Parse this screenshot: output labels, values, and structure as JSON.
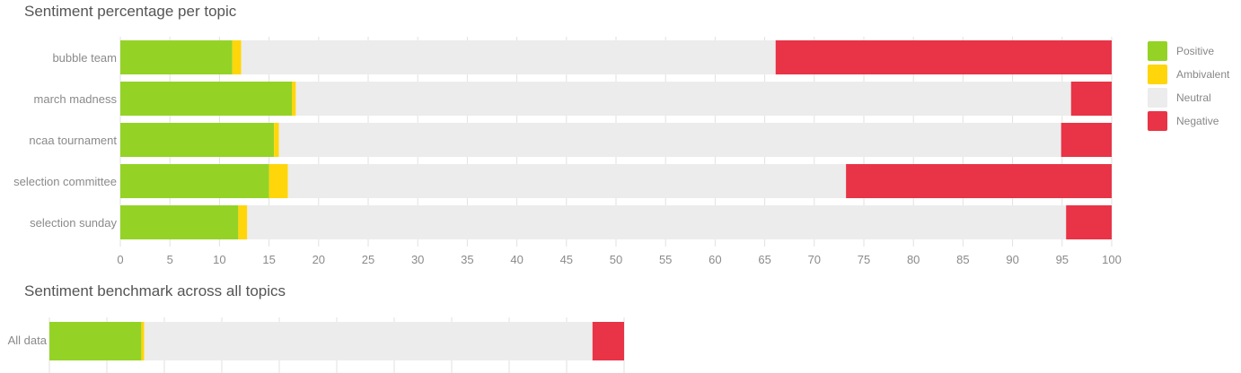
{
  "colors": {
    "positive": "#94d326",
    "ambivalent": "#ffd60a",
    "neutral": "#ececec",
    "negative": "#e83446",
    "grid": "#e2e2e2",
    "axis_text": "#8a8a8a",
    "title_text": "#555555"
  },
  "legend": [
    {
      "key": "positive",
      "label": "Positive"
    },
    {
      "key": "ambivalent",
      "label": "Ambivalent"
    },
    {
      "key": "neutral",
      "label": "Neutral"
    },
    {
      "key": "negative",
      "label": "Negative"
    }
  ],
  "chart_data": [
    {
      "type": "bar",
      "orientation": "horizontal",
      "stacked": true,
      "title": "Sentiment percentage per topic",
      "categories": [
        "bubble team",
        "march madness",
        "ncaa tournament",
        "selection committee",
        "selection sunday"
      ],
      "series": [
        {
          "name": "Positive",
          "values": [
            11.3,
            17.3,
            15.5,
            15.0,
            11.9
          ]
        },
        {
          "name": "Ambivalent",
          "values": [
            0.9,
            0.4,
            0.5,
            1.9,
            0.9
          ]
        },
        {
          "name": "Neutral",
          "values": [
            53.9,
            78.2,
            78.9,
            56.3,
            82.6
          ]
        },
        {
          "name": "Negative",
          "values": [
            33.9,
            4.1,
            5.1,
            26.8,
            4.6
          ]
        }
      ],
      "xlim": [
        0,
        100
      ],
      "xticks": [
        0,
        5,
        10,
        15,
        20,
        25,
        30,
        35,
        40,
        45,
        50,
        55,
        60,
        65,
        70,
        75,
        80,
        85,
        90,
        95,
        100
      ],
      "grid": true,
      "legend_position": "right"
    },
    {
      "type": "bar",
      "orientation": "horizontal",
      "stacked": true,
      "title": "Sentiment benchmark across all topics",
      "categories": [
        "All data"
      ],
      "series": [
        {
          "name": "Positive",
          "values": [
            16.0
          ]
        },
        {
          "name": "Ambivalent",
          "values": [
            0.5
          ]
        },
        {
          "name": "Neutral",
          "values": [
            78.0
          ]
        },
        {
          "name": "Negative",
          "values": [
            5.5
          ]
        }
      ],
      "xlim": [
        0,
        100
      ],
      "grid": true
    }
  ]
}
